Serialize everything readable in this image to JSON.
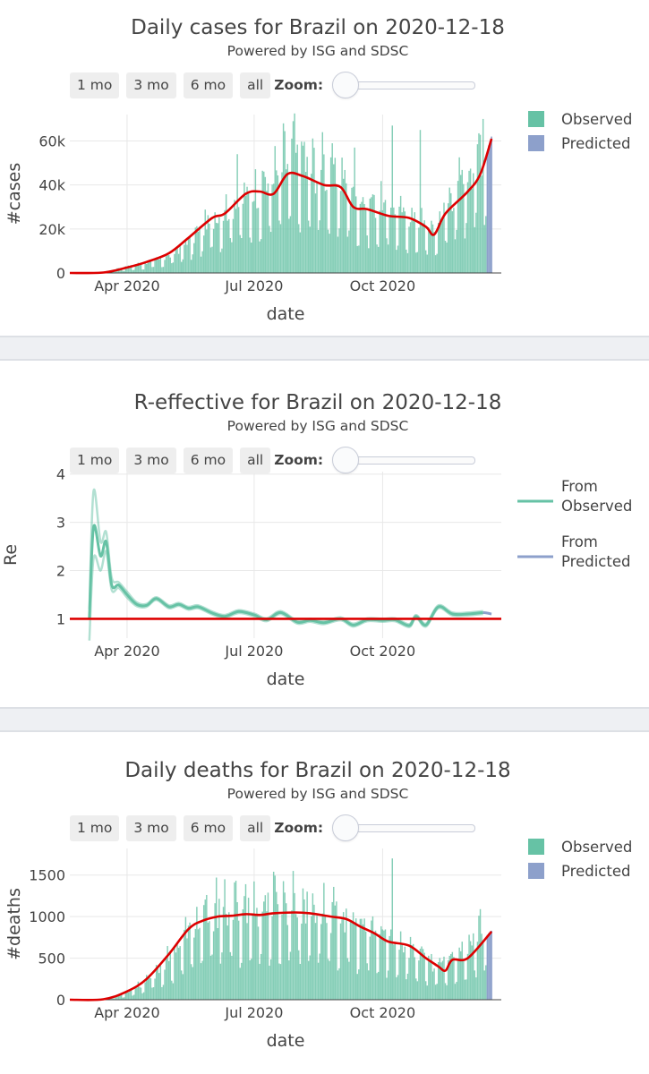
{
  "colors": {
    "observed": "#66c2a5",
    "predicted": "#8da0cb",
    "fit_line": "#dd0000",
    "grid": "#e8e8e8"
  },
  "controls": {
    "buttons": [
      "1 mo",
      "3 mo",
      "6 mo",
      "all"
    ],
    "zoom_label": "Zoom:"
  },
  "chart_data": [
    {
      "id": "cases",
      "type": "bar",
      "title": "Daily cases for Brazil on 2020-12-18",
      "subtitle": "Powered by ISG and SDSC",
      "xlabel": "date",
      "ylabel": "#cases",
      "xlim": [
        "2020-02-20",
        "2020-12-25"
      ],
      "ylim": [
        0,
        72000
      ],
      "yticks": [
        0,
        20000,
        40000,
        60000
      ],
      "ytick_labels": [
        "0",
        "20k",
        "40k",
        "60k"
      ],
      "xticks": [
        "2020-04-01",
        "2020-07-01",
        "2020-10-01"
      ],
      "xtick_labels": [
        "Apr 2020",
        "Jul 2020",
        "Oct 2020"
      ],
      "legend": [
        "Observed",
        "Predicted"
      ],
      "legend_position": "top-right",
      "observed_range": [
        "2020-02-26",
        "2020-12-14"
      ],
      "predicted_range": [
        "2020-12-15",
        "2020-12-18"
      ],
      "bar_profile": {
        "dates": [
          "2020-02-26",
          "2020-03-15",
          "2020-04-01",
          "2020-04-15",
          "2020-05-01",
          "2020-05-15",
          "2020-06-01",
          "2020-06-15",
          "2020-07-01",
          "2020-07-15",
          "2020-07-29",
          "2020-08-15",
          "2020-09-01",
          "2020-09-15",
          "2020-10-01",
          "2020-10-15",
          "2020-11-01",
          "2020-11-07",
          "2020-11-15",
          "2020-12-01",
          "2020-12-14"
        ],
        "values": [
          0,
          300,
          2500,
          4000,
          7000,
          13000,
          22000,
          28000,
          33000,
          40000,
          50000,
          42000,
          40000,
          30000,
          28000,
          24000,
          20000,
          17000,
          28000,
          42000,
          55000
        ]
      },
      "predicted_values": [
        55000,
        58000,
        60000,
        62000
      ],
      "fit_line": {
        "dates": [
          "2020-02-20",
          "2020-03-15",
          "2020-04-01",
          "2020-04-15",
          "2020-05-01",
          "2020-05-15",
          "2020-06-01",
          "2020-06-10",
          "2020-06-25",
          "2020-07-05",
          "2020-07-15",
          "2020-07-25",
          "2020-08-05",
          "2020-08-20",
          "2020-09-01",
          "2020-09-10",
          "2020-09-20",
          "2020-10-05",
          "2020-10-20",
          "2020-11-01",
          "2020-11-07",
          "2020-11-15",
          "2020-12-01",
          "2020-12-10",
          "2020-12-18"
        ],
        "values": [
          0,
          200,
          2500,
          5000,
          9000,
          16000,
          25000,
          27000,
          36000,
          37000,
          36000,
          45000,
          44000,
          40000,
          39000,
          30000,
          29000,
          26000,
          25000,
          21000,
          17500,
          27000,
          37000,
          45000,
          61000
        ]
      },
      "peak_spikes": [
        {
          "date": "2020-06-19",
          "value": 54000
        },
        {
          "date": "2020-07-22",
          "value": 68000
        },
        {
          "date": "2020-07-29",
          "value": 69000
        },
        {
          "date": "2020-08-19",
          "value": 64000
        },
        {
          "date": "2020-09-11",
          "value": 57000
        },
        {
          "date": "2020-10-08",
          "value": 67000
        },
        {
          "date": "2020-10-28",
          "value": 65000
        },
        {
          "date": "2020-12-12",
          "value": 70000
        }
      ]
    },
    {
      "id": "re",
      "type": "line",
      "title": "R-effective for Brazil on 2020-12-18",
      "subtitle": "Powered by ISG and SDSC",
      "xlabel": "date",
      "ylabel": "Re",
      "xlim": [
        "2020-02-20",
        "2020-12-25"
      ],
      "ylim": [
        0.6,
        4.05
      ],
      "yticks": [
        1,
        2,
        3,
        4
      ],
      "ytick_labels": [
        "1",
        "2",
        "3",
        "4"
      ],
      "xticks": [
        "2020-04-01",
        "2020-07-01",
        "2020-10-01"
      ],
      "xtick_labels": [
        "Apr 2020",
        "Jul 2020",
        "Oct 2020"
      ],
      "legend": [
        "From Observed",
        "From Predicted"
      ],
      "legend_position": "top-right",
      "reference_line": 1,
      "observed": {
        "dates": [
          "2020-03-05",
          "2020-03-08",
          "2020-03-13",
          "2020-03-17",
          "2020-03-21",
          "2020-03-26",
          "2020-04-01",
          "2020-04-08",
          "2020-04-15",
          "2020-04-22",
          "2020-05-01",
          "2020-05-08",
          "2020-05-15",
          "2020-05-22",
          "2020-06-01",
          "2020-06-10",
          "2020-06-20",
          "2020-07-01",
          "2020-07-10",
          "2020-07-20",
          "2020-08-01",
          "2020-08-10",
          "2020-08-20",
          "2020-09-01",
          "2020-09-10",
          "2020-09-20",
          "2020-10-01",
          "2020-10-10",
          "2020-10-20",
          "2020-10-25",
          "2020-11-01",
          "2020-11-10",
          "2020-11-20",
          "2020-12-01",
          "2020-12-12"
        ],
        "values": [
          1.0,
          2.9,
          2.3,
          2.6,
          1.7,
          1.7,
          1.5,
          1.3,
          1.28,
          1.42,
          1.25,
          1.3,
          1.22,
          1.25,
          1.12,
          1.05,
          1.15,
          1.08,
          0.98,
          1.13,
          0.93,
          0.97,
          0.92,
          1.0,
          0.87,
          0.98,
          0.97,
          0.98,
          0.86,
          1.05,
          0.87,
          1.25,
          1.1,
          1.1,
          1.13
        ]
      },
      "observed_upper": [
        1.2,
        3.65,
        2.6,
        2.8,
        1.85,
        1.76,
        1.56,
        1.34,
        1.31,
        1.45,
        1.28,
        1.33,
        1.25,
        1.28,
        1.15,
        1.08,
        1.18,
        1.11,
        1.01,
        1.16,
        0.96,
        1.0,
        0.95,
        1.03,
        0.9,
        1.01,
        1.0,
        1.01,
        0.89,
        1.08,
        0.9,
        1.28,
        1.13,
        1.13,
        1.16
      ],
      "observed_lower": [
        0.55,
        2.25,
        2.0,
        2.4,
        1.6,
        1.64,
        1.44,
        1.26,
        1.25,
        1.39,
        1.22,
        1.27,
        1.19,
        1.22,
        1.09,
        1.02,
        1.12,
        1.05,
        0.95,
        1.1,
        0.9,
        0.94,
        0.89,
        0.97,
        0.84,
        0.95,
        0.94,
        0.95,
        0.83,
        1.02,
        0.84,
        1.22,
        1.07,
        1.07,
        1.1
      ],
      "predicted": {
        "dates": [
          "2020-12-12",
          "2020-12-15",
          "2020-12-18"
        ],
        "values": [
          1.13,
          1.12,
          1.1
        ]
      }
    },
    {
      "id": "deaths",
      "type": "bar",
      "title": "Daily deaths for Brazil on 2020-12-18",
      "subtitle": "Powered by ISG and SDSC",
      "xlabel": "date",
      "ylabel": "#deaths",
      "xlim": [
        "2020-02-20",
        "2020-12-25"
      ],
      "ylim": [
        0,
        1820
      ],
      "yticks": [
        0,
        500,
        1000,
        1500
      ],
      "ytick_labels": [
        "0",
        "500",
        "1000",
        "1500"
      ],
      "xticks": [
        "2020-04-01",
        "2020-07-01",
        "2020-10-01"
      ],
      "xtick_labels": [
        "Apr 2020",
        "Jul 2020",
        "Oct 2020"
      ],
      "legend": [
        "Observed",
        "Predicted"
      ],
      "legend_position": "top-right",
      "observed_range": [
        "2020-03-17",
        "2020-12-14"
      ],
      "predicted_range": [
        "2020-12-15",
        "2020-12-18"
      ],
      "bar_profile": {
        "dates": [
          "2020-03-17",
          "2020-04-01",
          "2020-04-15",
          "2020-05-01",
          "2020-05-15",
          "2020-06-01",
          "2020-06-15",
          "2020-07-01",
          "2020-07-15",
          "2020-08-01",
          "2020-08-15",
          "2020-09-01",
          "2020-09-15",
          "2020-10-01",
          "2020-10-15",
          "2020-11-01",
          "2020-11-10",
          "2020-11-20",
          "2020-12-01",
          "2020-12-14"
        ],
        "values": [
          5,
          80,
          200,
          450,
          750,
          950,
          1000,
          1000,
          1050,
          1030,
          1000,
          900,
          780,
          700,
          620,
          450,
          350,
          480,
          580,
          750
        ]
      },
      "predicted_values": [
        780,
        800,
        815,
        830
      ],
      "fit_line": {
        "dates": [
          "2020-02-20",
          "2020-03-15",
          "2020-04-01",
          "2020-04-15",
          "2020-05-01",
          "2020-05-15",
          "2020-05-25",
          "2020-06-05",
          "2020-06-15",
          "2020-06-25",
          "2020-07-05",
          "2020-07-15",
          "2020-07-30",
          "2020-08-10",
          "2020-08-25",
          "2020-09-05",
          "2020-09-15",
          "2020-09-25",
          "2020-10-05",
          "2020-10-20",
          "2020-11-01",
          "2020-11-10",
          "2020-11-15",
          "2020-11-20",
          "2020-12-01",
          "2020-12-18"
        ],
        "values": [
          0,
          5,
          100,
          250,
          550,
          850,
          950,
          1000,
          1010,
          1030,
          1020,
          1040,
          1050,
          1040,
          1000,
          970,
          880,
          800,
          700,
          650,
          500,
          400,
          350,
          480,
          500,
          820
        ]
      },
      "peak_spikes": [
        {
          "date": "2020-06-04",
          "value": 1470
        },
        {
          "date": "2020-07-29",
          "value": 1550
        },
        {
          "date": "2020-06-25",
          "value": 1390
        },
        {
          "date": "2020-10-08",
          "value": 1700
        },
        {
          "date": "2020-12-10",
          "value": 1090
        }
      ]
    }
  ]
}
